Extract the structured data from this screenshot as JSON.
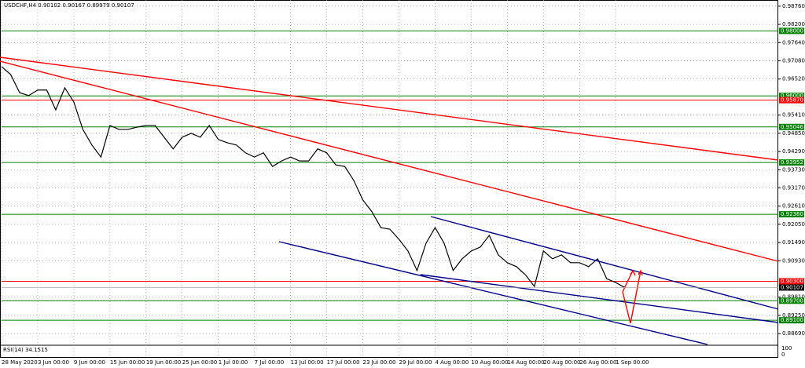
{
  "chart_data": {
    "type": "line",
    "title": "USDCHF,H4  0.90102 0.90167 0.89979 0.90107",
    "indicator_label": "RSI(14) 34.1515",
    "indicator_ticks": [
      "100",
      "0"
    ],
    "color": "#000000",
    "grid": true,
    "xlim": [
      0,
      86
    ],
    "ylim": [
      0.8838,
      0.9895
    ],
    "xticks": [
      {
        "value": 0,
        "label": "28 May 2020"
      },
      {
        "value": 4,
        "label": "3 Jun 00:00"
      },
      {
        "value": 8,
        "label": "9 Jun 00:00"
      },
      {
        "value": 12,
        "label": "15 Jun 00:00"
      },
      {
        "value": 16,
        "label": "19 Jun 00:00"
      },
      {
        "value": 20,
        "label": "25 Jun 00:00"
      },
      {
        "value": 24,
        "label": "1 Jul 00:00"
      },
      {
        "value": 28,
        "label": "7 Jul 00:00"
      },
      {
        "value": 32,
        "label": "13 Jul 00:00"
      },
      {
        "value": 36,
        "label": "17 Jul 00:00"
      },
      {
        "value": 40,
        "label": "23 Jul 00:00"
      },
      {
        "value": 44,
        "label": "29 Jul 00:00"
      },
      {
        "value": 48,
        "label": "4 Aug 00:00"
      },
      {
        "value": 52,
        "label": "10 Aug 00:00"
      },
      {
        "value": 56,
        "label": "14 Aug 00:00"
      },
      {
        "value": 60,
        "label": "20 Aug 00:00"
      },
      {
        "value": 64,
        "label": "26 Aug 00:00"
      },
      {
        "value": 68,
        "label": "1 Sep 00:00"
      }
    ],
    "yticks": [
      {
        "value": 0.9876,
        "label": "0.98760"
      },
      {
        "value": 0.982,
        "label": "0.98200"
      },
      {
        "value": 0.9764,
        "label": "0.97640"
      },
      {
        "value": 0.9708,
        "label": "0.97080"
      },
      {
        "value": 0.9652,
        "label": "0.96520"
      },
      {
        "value": 0.9541,
        "label": "0.95410"
      },
      {
        "value": 0.9485,
        "label": "0.94850"
      },
      {
        "value": 0.9429,
        "label": "0.94290"
      },
      {
        "value": 0.9373,
        "label": "0.93730"
      },
      {
        "value": 0.9317,
        "label": "0.93170"
      },
      {
        "value": 0.9261,
        "label": "0.92610"
      },
      {
        "value": 0.9205,
        "label": "0.92050"
      },
      {
        "value": 0.9149,
        "label": "0.91490"
      },
      {
        "value": 0.9093,
        "label": "0.90930"
      },
      {
        "value": 0.8981,
        "label": "0.89810"
      },
      {
        "value": 0.8925,
        "label": "0.89250"
      },
      {
        "value": 0.8869,
        "label": "0.88690"
      }
    ],
    "levels": [
      {
        "value": 0.98,
        "label": "0.98000",
        "color": "#008000"
      },
      {
        "value": 0.96,
        "label": "0.96000",
        "color": "#008000"
      },
      {
        "value": 0.9587,
        "label": "0.95870",
        "color": "#ff0000"
      },
      {
        "value": 0.95046,
        "label": "0.95046",
        "color": "#008000"
      },
      {
        "value": 0.93952,
        "label": "0.93952",
        "color": "#008000"
      },
      {
        "value": 0.9236,
        "label": "0.92360",
        "color": "#008000"
      },
      {
        "value": 0.903,
        "label": "0.90300",
        "color": "#ff0000"
      },
      {
        "value": 0.897,
        "label": "0.89700",
        "color": "#008000"
      },
      {
        "value": 0.891,
        "label": "0.89100",
        "color": "#008000"
      }
    ],
    "last_price": {
      "value": 0.90107,
      "label": "0.90107"
    },
    "x": [
      0,
      1,
      2,
      3,
      4,
      5,
      6,
      7,
      8,
      9,
      10,
      11,
      12,
      13,
      14,
      15,
      16,
      17,
      18,
      19,
      20,
      21,
      22,
      23,
      24,
      25,
      26,
      27,
      28,
      29,
      30,
      31,
      32,
      33,
      34,
      35,
      36,
      37,
      38,
      39,
      40,
      41,
      42,
      43,
      44,
      45,
      46,
      47,
      48,
      49,
      50,
      51,
      52,
      53,
      54,
      55,
      56,
      57,
      58,
      59,
      60,
      61,
      62,
      63,
      64,
      65,
      66,
      67,
      68,
      69
    ],
    "values": [
      0.969,
      0.9666,
      0.961,
      0.9601,
      0.9618,
      0.9618,
      0.9557,
      0.9625,
      0.9581,
      0.9497,
      0.9449,
      0.9412,
      0.9509,
      0.9497,
      0.9497,
      0.9504,
      0.9509,
      0.9509,
      0.9473,
      0.9437,
      0.9473,
      0.9485,
      0.9473,
      0.9509,
      0.9466,
      0.9456,
      0.9449,
      0.9425,
      0.9412,
      0.9425,
      0.9383,
      0.94,
      0.9412,
      0.94,
      0.94,
      0.9437,
      0.9425,
      0.9388,
      0.9383,
      0.934,
      0.928,
      0.9244,
      0.9195,
      0.919,
      0.9159,
      0.9123,
      0.9063,
      0.9147,
      0.9195,
      0.9147,
      0.9063,
      0.9099,
      0.9123,
      0.9135,
      0.9171,
      0.9111,
      0.9087,
      0.9075,
      0.905,
      0.9014,
      0.9123,
      0.9099,
      0.9111,
      0.9087,
      0.9087,
      0.9075,
      0.9099,
      0.9038,
      0.9026,
      0.90107
    ]
  }
}
